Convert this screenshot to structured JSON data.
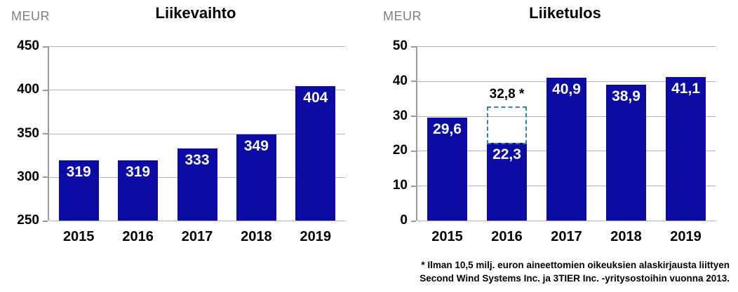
{
  "chart_data": [
    {
      "type": "bar",
      "title": "Liikevaihto",
      "unit_label": "MEUR",
      "categories": [
        "2015",
        "2016",
        "2017",
        "2018",
        "2019"
      ],
      "values": [
        319,
        319,
        333,
        349,
        404
      ],
      "bar_labels": [
        "319",
        "319",
        "333",
        "349",
        "404"
      ],
      "ylim": [
        250,
        450
      ],
      "ytick_values": [
        250,
        300,
        350,
        400,
        450
      ],
      "ytick_labels": [
        "250",
        "300",
        "350",
        "400",
        "450"
      ],
      "grid": true,
      "legend": "none",
      "bar_color": "#0c0ca5",
      "bar_label_color": "#ffffff",
      "grid_color": "#b3b3b3"
    },
    {
      "type": "bar",
      "title": "Liiketulos",
      "unit_label": "MEUR",
      "categories": [
        "2015",
        "2016",
        "2017",
        "2018",
        "2019"
      ],
      "values": [
        29.6,
        22.3,
        40.9,
        38.9,
        41.1
      ],
      "bar_labels": [
        "29,6",
        "22,3",
        "40,9",
        "38,9",
        "41,1"
      ],
      "ylim": [
        0,
        50
      ],
      "ytick_values": [
        0,
        10,
        20,
        30,
        40,
        50
      ],
      "ytick_labels": [
        "0",
        "10",
        "20",
        "30",
        "40",
        "50"
      ],
      "grid": true,
      "legend": "none",
      "bar_color": "#0c0ca5",
      "bar_label_color": "#ffffff",
      "grid_color": "#b3b3b3",
      "annotation": {
        "bar_index": 1,
        "category": "2016",
        "value": 32.8,
        "label": "32,8 *",
        "style": "dashed-box",
        "color": "#35849b"
      }
    }
  ],
  "footnote": {
    "line1": "* Ilman 10,5 milj. euron aineettomien oikeuksien alaskirjausta liittyen",
    "line2": "Second Wind Systems Inc. ja 3TIER Inc. -yritysostoihin vuonna 2013."
  }
}
